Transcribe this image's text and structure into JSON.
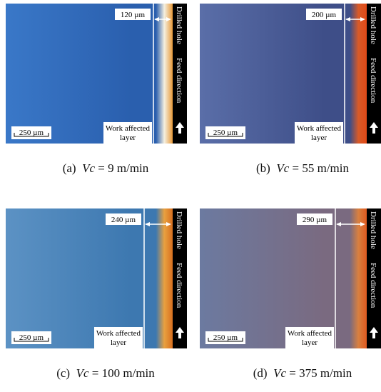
{
  "panels": [
    {
      "thickness": "120 µm",
      "scale_bar": "250 µm",
      "layer_label": [
        "Work affected",
        "layer"
      ],
      "hole_label": "Drilled hole",
      "feed_label": "Feed direction",
      "caption": {
        "label": "(a)",
        "variable": "Vc",
        "value": "= 9 m/min"
      }
    },
    {
      "thickness": "200 µm",
      "scale_bar": "250 µm",
      "layer_label": [
        "Work affected",
        "layer"
      ],
      "hole_label": "Drilled hole",
      "feed_label": "Feed direction",
      "caption": {
        "label": "(b)",
        "variable": "Vc",
        "value": "= 55 m/min"
      }
    },
    {
      "thickness": "240 µm",
      "scale_bar": "250 µm",
      "layer_label": [
        "Work affected",
        "layer"
      ],
      "hole_label": "Drilled hole",
      "feed_label": "Feed direction",
      "caption": {
        "label": "(c)",
        "variable": "Vc",
        "value": "= 100 m/min"
      }
    },
    {
      "thickness": "290 µm",
      "scale_bar": "250 µm",
      "layer_label": [
        "Work affected",
        "layer"
      ],
      "hole_label": "Drilled hole",
      "feed_label": "Feed direction",
      "caption": {
        "label": "(d)",
        "variable": "Vc",
        "value": "= 375 m/min"
      }
    }
  ]
}
